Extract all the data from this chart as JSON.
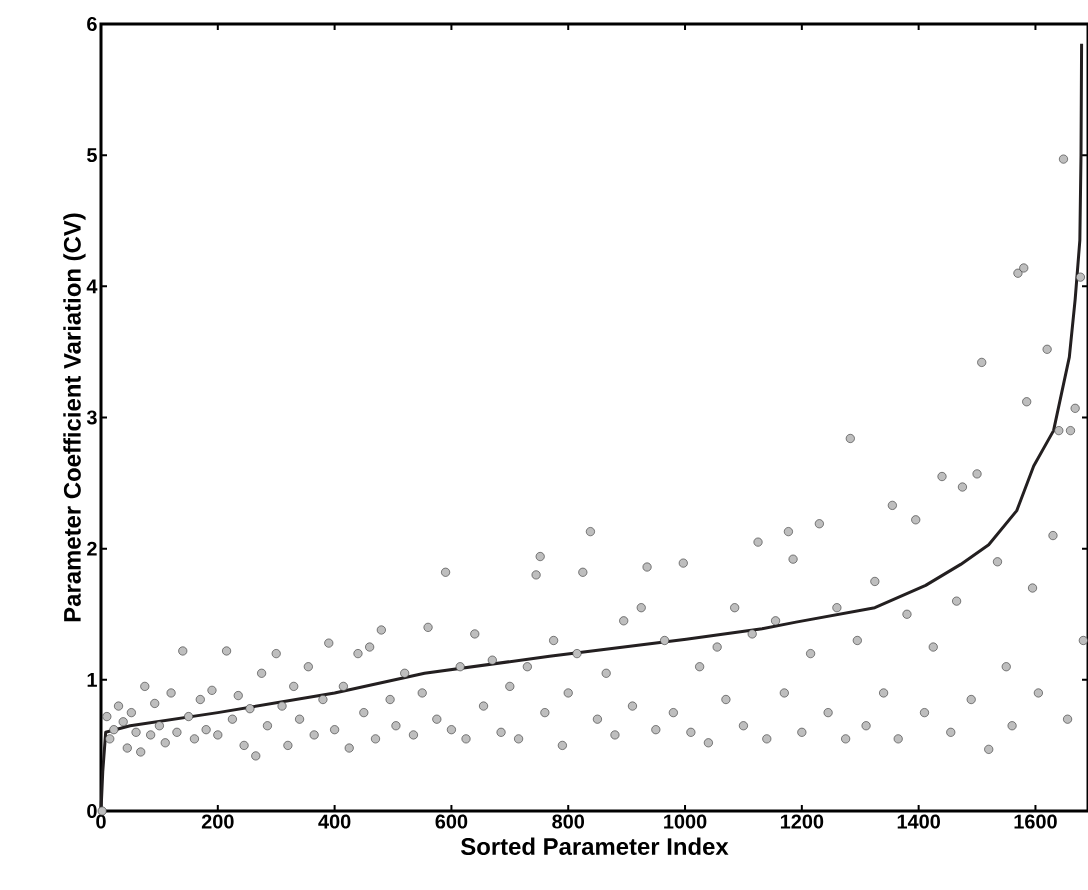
{
  "chart_data": {
    "type": "scatter",
    "xlabel": "Sorted Parameter Index",
    "ylabel": "Parameter Coefficient Variation (CV)",
    "xlim": [
      0,
      1690
    ],
    "ylim": [
      0,
      6
    ],
    "xticks": [
      0,
      200,
      400,
      600,
      800,
      1000,
      1200,
      1400,
      1600
    ],
    "yticks": [
      0,
      1,
      2,
      3,
      4,
      5,
      6
    ],
    "grid": false,
    "series": [
      {
        "color": "#bebebe",
        "marker": "circle",
        "x": [
          2,
          10,
          15,
          22,
          30,
          38,
          45,
          52,
          60,
          68,
          75,
          85,
          92,
          100,
          110,
          120,
          130,
          140,
          150,
          160,
          170,
          180,
          190,
          200,
          215,
          225,
          235,
          245,
          255,
          265,
          275,
          285,
          300,
          310,
          320,
          330,
          340,
          355,
          365,
          380,
          390,
          400,
          415,
          425,
          440,
          450,
          460,
          470,
          480,
          495,
          505,
          520,
          535,
          550,
          560,
          575,
          590,
          600,
          615,
          625,
          640,
          655,
          670,
          685,
          700,
          715,
          730,
          745,
          752,
          760,
          775,
          790,
          800,
          815,
          825,
          838,
          850,
          865,
          880,
          895,
          910,
          925,
          935,
          950,
          965,
          980,
          997,
          1010,
          1025,
          1040,
          1055,
          1070,
          1085,
          1100,
          1115,
          1125,
          1140,
          1155,
          1170,
          1177,
          1185,
          1200,
          1215,
          1230,
          1245,
          1260,
          1275,
          1283,
          1295,
          1310,
          1325,
          1340,
          1355,
          1365,
          1380,
          1395,
          1410,
          1425,
          1440,
          1455,
          1465,
          1475,
          1490,
          1500,
          1508,
          1520,
          1535,
          1550,
          1560,
          1570,
          1580,
          1585,
          1595,
          1605,
          1620,
          1630,
          1640,
          1648,
          1655,
          1660,
          1668,
          1677,
          1682
        ],
        "values": [
          0.0,
          0.72,
          0.55,
          0.62,
          0.8,
          0.68,
          0.48,
          0.75,
          0.6,
          0.45,
          0.95,
          0.58,
          0.82,
          0.65,
          0.52,
          0.9,
          0.6,
          1.22,
          0.72,
          0.55,
          0.85,
          0.62,
          0.92,
          0.58,
          1.22,
          0.7,
          0.88,
          0.5,
          0.78,
          0.42,
          1.05,
          0.65,
          1.2,
          0.8,
          0.5,
          0.95,
          0.7,
          1.1,
          0.58,
          0.85,
          1.28,
          0.62,
          0.95,
          0.48,
          1.2,
          0.75,
          1.25,
          0.55,
          1.38,
          0.85,
          0.65,
          1.05,
          0.58,
          0.9,
          1.4,
          0.7,
          1.82,
          0.62,
          1.1,
          0.55,
          1.35,
          0.8,
          1.15,
          0.6,
          0.95,
          0.55,
          1.1,
          1.8,
          1.94,
          0.75,
          1.3,
          0.5,
          0.9,
          1.2,
          1.82,
          2.13,
          0.7,
          1.05,
          0.58,
          1.45,
          0.8,
          1.55,
          1.86,
          0.62,
          1.3,
          0.75,
          1.89,
          0.6,
          1.1,
          0.52,
          1.25,
          0.85,
          1.55,
          0.65,
          1.35,
          2.05,
          0.55,
          1.45,
          0.9,
          2.13,
          1.92,
          0.6,
          1.2,
          2.19,
          0.75,
          1.55,
          0.55,
          2.84,
          1.3,
          0.65,
          1.75,
          0.9,
          2.33,
          0.55,
          1.5,
          2.22,
          0.75,
          1.25,
          2.55,
          0.6,
          1.6,
          2.47,
          0.85,
          2.57,
          3.42,
          0.47,
          1.9,
          1.1,
          0.65,
          4.1,
          4.14,
          3.12,
          1.7,
          0.9,
          3.52,
          2.1,
          2.9,
          4.97,
          0.7,
          2.9,
          3.07,
          4.07,
          1.3
        ]
      },
      {
        "type": "line",
        "color": "#231f20",
        "marker": "none",
        "x": [
          0,
          3,
          8,
          50,
          200,
          400,
          554,
          768,
          1002,
          1132,
          1190,
          1325,
          1412,
          1472,
          1520,
          1568,
          1597,
          1631,
          1658,
          1668,
          1676,
          1678,
          1679
        ],
        "values": [
          0.0,
          0.3,
          0.6,
          0.65,
          0.75,
          0.9,
          1.05,
          1.18,
          1.31,
          1.39,
          1.44,
          1.55,
          1.72,
          1.88,
          2.03,
          2.29,
          2.63,
          2.9,
          3.46,
          3.9,
          4.35,
          5.0,
          5.85
        ]
      }
    ]
  }
}
